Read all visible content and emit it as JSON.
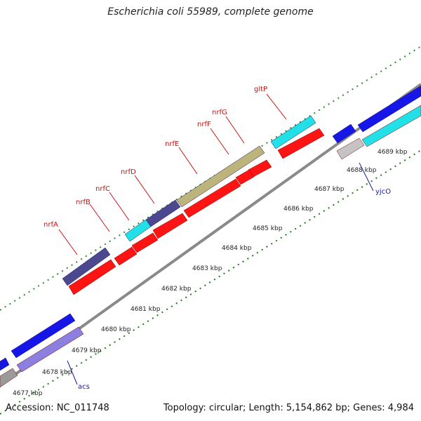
{
  "title": "Escherichia coli 55989, complete genome",
  "accession": "Accession: NC_011748",
  "topology": "Topology: circular; Length: 5,154,862 bp; Genes: 4,984",
  "colors": {
    "backbone": "#8a8a8a",
    "outer_dots": "#2e8b2e",
    "inner_dots": "#1f7a1f",
    "red_label": "#cc1111",
    "blue_label": "#1a1aa0"
  },
  "scale_ticks": [
    {
      "label": "4677 kbp"
    },
    {
      "label": "4678 kbp"
    },
    {
      "label": "4679 kbp"
    },
    {
      "label": "4680 kbp"
    },
    {
      "label": "4681 kbp"
    },
    {
      "label": "4682 kbp"
    },
    {
      "label": "4683 kbp"
    },
    {
      "label": "4684 kbp"
    },
    {
      "label": "4685 kbp"
    },
    {
      "label": "4686 kbp"
    },
    {
      "label": "4687 kbp"
    },
    {
      "label": "4688 kbp"
    },
    {
      "label": "4689 kbp"
    }
  ],
  "gene_labels": [
    {
      "name": "nrfA",
      "color": "red"
    },
    {
      "name": "nrfB",
      "color": "red"
    },
    {
      "name": "nrfC",
      "color": "red"
    },
    {
      "name": "nrfD",
      "color": "red"
    },
    {
      "name": "nrfE",
      "color": "red"
    },
    {
      "name": "nrfF",
      "color": "red"
    },
    {
      "name": "nrfG",
      "color": "red"
    },
    {
      "name": "gltP",
      "color": "red"
    },
    {
      "name": "yjcO",
      "color": "blue"
    },
    {
      "name": "acs",
      "color": "blue"
    }
  ]
}
